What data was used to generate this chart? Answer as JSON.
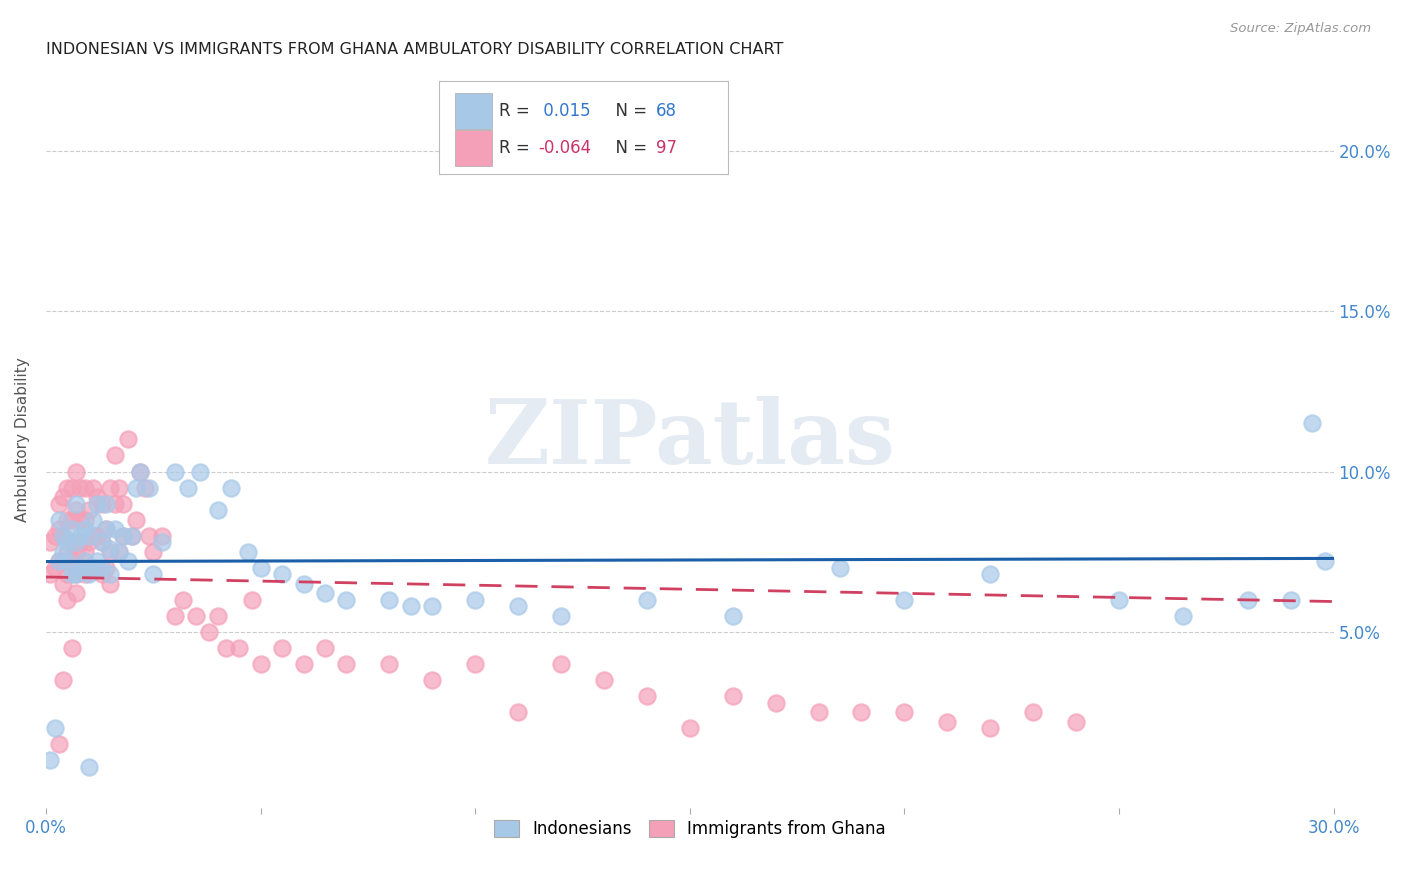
{
  "title": "INDONESIAN VS IMMIGRANTS FROM GHANA AMBULATORY DISABILITY CORRELATION CHART",
  "source": "Source: ZipAtlas.com",
  "ylabel": "Ambulatory Disability",
  "xlim": [
    0.0,
    0.3
  ],
  "ylim": [
    -0.005,
    0.225
  ],
  "xticks": [
    0.0,
    0.05,
    0.1,
    0.15,
    0.2,
    0.25,
    0.3
  ],
  "xticklabels": [
    "0.0%",
    "",
    "",
    "",
    "",
    "",
    "30.0%"
  ],
  "yticks": [
    0.05,
    0.1,
    0.15,
    0.2
  ],
  "yticklabels": [
    "5.0%",
    "10.0%",
    "15.0%",
    "20.0%"
  ],
  "color_blue": "#a8c8e8",
  "color_pink": "#f4a0b8",
  "trendline_blue": "#1a5fa8",
  "trendline_pink": "#d04060",
  "r1": 0.015,
  "n1": 68,
  "r2": -0.064,
  "n2": 97,
  "watermark": "ZIPatlas",
  "indonesians_x": [
    0.001,
    0.002,
    0.003,
    0.003,
    0.004,
    0.004,
    0.005,
    0.005,
    0.006,
    0.006,
    0.007,
    0.007,
    0.007,
    0.008,
    0.008,
    0.009,
    0.009,
    0.01,
    0.01,
    0.011,
    0.011,
    0.012,
    0.012,
    0.013,
    0.013,
    0.014,
    0.014,
    0.015,
    0.015,
    0.016,
    0.017,
    0.018,
    0.019,
    0.02,
    0.021,
    0.022,
    0.024,
    0.025,
    0.027,
    0.03,
    0.033,
    0.036,
    0.04,
    0.043,
    0.047,
    0.05,
    0.055,
    0.06,
    0.065,
    0.07,
    0.08,
    0.085,
    0.09,
    0.1,
    0.11,
    0.12,
    0.14,
    0.16,
    0.185,
    0.2,
    0.22,
    0.25,
    0.265,
    0.28,
    0.29,
    0.295,
    0.298,
    0.01
  ],
  "indonesians_y": [
    0.01,
    0.02,
    0.072,
    0.085,
    0.075,
    0.08,
    0.072,
    0.078,
    0.068,
    0.082,
    0.068,
    0.078,
    0.09,
    0.07,
    0.08,
    0.072,
    0.082,
    0.068,
    0.08,
    0.07,
    0.085,
    0.072,
    0.09,
    0.07,
    0.078,
    0.082,
    0.09,
    0.068,
    0.076,
    0.082,
    0.075,
    0.08,
    0.072,
    0.08,
    0.095,
    0.1,
    0.095,
    0.068,
    0.078,
    0.1,
    0.095,
    0.1,
    0.088,
    0.095,
    0.075,
    0.07,
    0.068,
    0.065,
    0.062,
    0.06,
    0.06,
    0.058,
    0.058,
    0.06,
    0.058,
    0.055,
    0.06,
    0.055,
    0.07,
    0.06,
    0.068,
    0.06,
    0.055,
    0.06,
    0.06,
    0.115,
    0.072,
    0.008
  ],
  "ghana_x": [
    0.001,
    0.001,
    0.002,
    0.002,
    0.003,
    0.003,
    0.003,
    0.004,
    0.004,
    0.004,
    0.004,
    0.005,
    0.005,
    0.005,
    0.005,
    0.006,
    0.006,
    0.006,
    0.006,
    0.007,
    0.007,
    0.007,
    0.007,
    0.008,
    0.008,
    0.008,
    0.008,
    0.009,
    0.009,
    0.009,
    0.009,
    0.01,
    0.01,
    0.01,
    0.011,
    0.011,
    0.011,
    0.012,
    0.012,
    0.012,
    0.013,
    0.013,
    0.013,
    0.014,
    0.014,
    0.015,
    0.015,
    0.015,
    0.016,
    0.016,
    0.017,
    0.017,
    0.018,
    0.018,
    0.019,
    0.02,
    0.021,
    0.022,
    0.023,
    0.024,
    0.025,
    0.027,
    0.03,
    0.032,
    0.035,
    0.038,
    0.04,
    0.042,
    0.045,
    0.048,
    0.05,
    0.055,
    0.06,
    0.065,
    0.07,
    0.08,
    0.09,
    0.1,
    0.11,
    0.12,
    0.13,
    0.14,
    0.15,
    0.16,
    0.17,
    0.18,
    0.19,
    0.2,
    0.21,
    0.22,
    0.23,
    0.24,
    0.005,
    0.003,
    0.004,
    0.006,
    0.007
  ],
  "ghana_y": [
    0.068,
    0.078,
    0.07,
    0.08,
    0.072,
    0.082,
    0.09,
    0.065,
    0.072,
    0.08,
    0.092,
    0.068,
    0.075,
    0.085,
    0.095,
    0.072,
    0.078,
    0.085,
    0.095,
    0.068,
    0.075,
    0.088,
    0.1,
    0.07,
    0.078,
    0.085,
    0.095,
    0.068,
    0.075,
    0.085,
    0.095,
    0.07,
    0.078,
    0.088,
    0.07,
    0.08,
    0.095,
    0.07,
    0.08,
    0.092,
    0.068,
    0.078,
    0.09,
    0.07,
    0.082,
    0.065,
    0.075,
    0.095,
    0.105,
    0.09,
    0.075,
    0.095,
    0.08,
    0.09,
    0.11,
    0.08,
    0.085,
    0.1,
    0.095,
    0.08,
    0.075,
    0.08,
    0.055,
    0.06,
    0.055,
    0.05,
    0.055,
    0.045,
    0.045,
    0.06,
    0.04,
    0.045,
    0.04,
    0.045,
    0.04,
    0.04,
    0.035,
    0.04,
    0.025,
    0.04,
    0.035,
    0.03,
    0.02,
    0.03,
    0.028,
    0.025,
    0.025,
    0.025,
    0.022,
    0.02,
    0.025,
    0.022,
    0.06,
    0.015,
    0.035,
    0.045,
    0.062
  ]
}
